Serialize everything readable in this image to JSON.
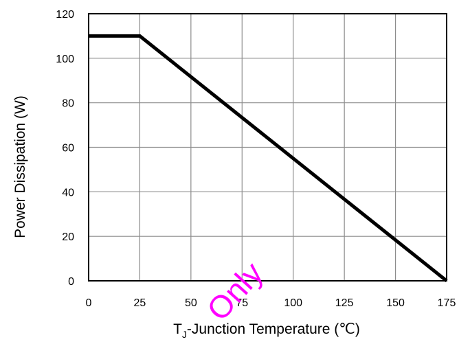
{
  "chart_data": {
    "type": "line",
    "title": "",
    "xlabel": "Tⱼ-Junction Temperature (℃)",
    "xlabel_parts": {
      "main": "T",
      "sub": "J",
      "rest": "-Junction Temperature (℃)"
    },
    "ylabel": "Power Dissipation (W)",
    "xlim": [
      0,
      175
    ],
    "ylim": [
      0,
      120
    ],
    "x_ticks": [
      0,
      25,
      50,
      75,
      100,
      125,
      150,
      175
    ],
    "y_ticks": [
      0,
      20,
      40,
      60,
      80,
      100,
      120
    ],
    "x_tick_labels": [
      "0",
      "25",
      "50",
      "75",
      "100",
      "125",
      "150",
      "175"
    ],
    "y_tick_labels": [
      "0",
      "20",
      "40",
      "60",
      "80",
      "100",
      "120"
    ],
    "grid": true,
    "series": [
      {
        "x": [
          0,
          25,
          175
        ],
        "y": [
          110,
          110,
          0
        ],
        "color": "#000000"
      }
    ]
  },
  "watermark": {
    "text": "Only",
    "color": "#ff00ff"
  }
}
